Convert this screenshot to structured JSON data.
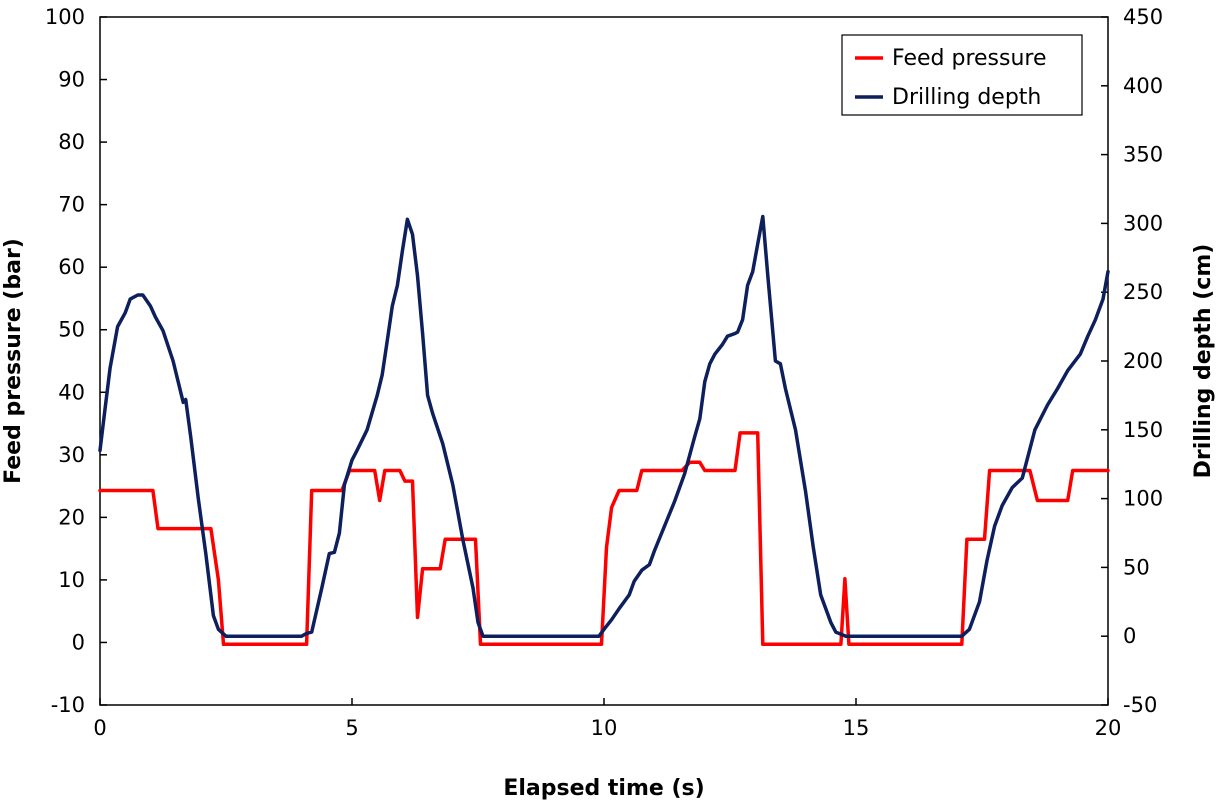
{
  "chart_data": {
    "type": "line",
    "xlabel": "Elapsed time (s)",
    "ylabel_left": "Feed pressure (bar)",
    "ylabel_right": "Drilling depth (cm)",
    "xlim": [
      0,
      20
    ],
    "ylim_left": [
      -10,
      100
    ],
    "ylim_right": [
      -50,
      450
    ],
    "x_ticks": [
      "0",
      "5",
      "10",
      "15",
      "20"
    ],
    "y_left_ticks": [
      "-10",
      "0",
      "10",
      "20",
      "30",
      "40",
      "50",
      "60",
      "70",
      "80",
      "90",
      "100"
    ],
    "y_right_ticks": [
      "-50",
      "0",
      "50",
      "100",
      "150",
      "200",
      "250",
      "300",
      "350",
      "400",
      "450"
    ],
    "grid": false,
    "legend_position": "top-right",
    "series": [
      {
        "name": "Feed pressure",
        "axis": "left",
        "color": "#ff0000",
        "points": [
          [
            0,
            24.3
          ],
          [
            1.05,
            24.3
          ],
          [
            1.15,
            18.2
          ],
          [
            2.2,
            18.2
          ],
          [
            2.35,
            10
          ],
          [
            2.45,
            -0.3
          ],
          [
            4.1,
            -0.3
          ],
          [
            4.2,
            24.3
          ],
          [
            4.8,
            24.3
          ],
          [
            4.95,
            27.5
          ],
          [
            5.45,
            27.5
          ],
          [
            5.55,
            22.7
          ],
          [
            5.65,
            27.5
          ],
          [
            5.95,
            27.5
          ],
          [
            6.05,
            25.8
          ],
          [
            6.2,
            25.8
          ],
          [
            6.3,
            4
          ],
          [
            6.4,
            11.8
          ],
          [
            6.75,
            11.8
          ],
          [
            6.85,
            16.5
          ],
          [
            7.45,
            16.5
          ],
          [
            7.55,
            -0.3
          ],
          [
            9.95,
            -0.3
          ],
          [
            10.05,
            15.2
          ],
          [
            10.15,
            21.6
          ],
          [
            10.3,
            24.3
          ],
          [
            10.65,
            24.3
          ],
          [
            10.75,
            27.5
          ],
          [
            11.55,
            27.5
          ],
          [
            11.7,
            28.8
          ],
          [
            11.9,
            28.8
          ],
          [
            12.0,
            27.5
          ],
          [
            12.6,
            27.5
          ],
          [
            12.7,
            33.5
          ],
          [
            13.05,
            33.5
          ],
          [
            13.15,
            -0.3
          ],
          [
            14.7,
            -0.3
          ],
          [
            14.78,
            10.2
          ],
          [
            14.86,
            -0.3
          ],
          [
            17.1,
            -0.3
          ],
          [
            17.2,
            16.5
          ],
          [
            17.55,
            16.5
          ],
          [
            17.65,
            27.5
          ],
          [
            18.45,
            27.5
          ],
          [
            18.6,
            22.7
          ],
          [
            19.2,
            22.7
          ],
          [
            19.3,
            27.5
          ],
          [
            20,
            27.5
          ]
        ]
      },
      {
        "name": "Drilling depth",
        "axis": "right",
        "color": "#0d1f5c",
        "points": [
          [
            0,
            135
          ],
          [
            0.1,
            165
          ],
          [
            0.2,
            195
          ],
          [
            0.35,
            225
          ],
          [
            0.5,
            235
          ],
          [
            0.6,
            245
          ],
          [
            0.75,
            248
          ],
          [
            0.85,
            248
          ],
          [
            1.0,
            240
          ],
          [
            1.1,
            232
          ],
          [
            1.25,
            222
          ],
          [
            1.45,
            200
          ],
          [
            1.65,
            170
          ],
          [
            1.7,
            172
          ],
          [
            1.8,
            145
          ],
          [
            1.95,
            100
          ],
          [
            2.1,
            60
          ],
          [
            2.25,
            15
          ],
          [
            2.35,
            5
          ],
          [
            2.5,
            0
          ],
          [
            3.0,
            0
          ],
          [
            3.2,
            0
          ],
          [
            3.6,
            0
          ],
          [
            3.8,
            0
          ],
          [
            4.0,
            0
          ],
          [
            4.1,
            2
          ],
          [
            4.2,
            3
          ],
          [
            4.4,
            35
          ],
          [
            4.55,
            60
          ],
          [
            4.65,
            61
          ],
          [
            4.75,
            75
          ],
          [
            4.85,
            110
          ],
          [
            5.0,
            128
          ],
          [
            5.1,
            135
          ],
          [
            5.3,
            150
          ],
          [
            5.5,
            175
          ],
          [
            5.6,
            190
          ],
          [
            5.7,
            215
          ],
          [
            5.8,
            240
          ],
          [
            5.9,
            255
          ],
          [
            6.0,
            280
          ],
          [
            6.1,
            303
          ],
          [
            6.2,
            292
          ],
          [
            6.3,
            262
          ],
          [
            6.4,
            220
          ],
          [
            6.5,
            175
          ],
          [
            6.6,
            162
          ],
          [
            6.8,
            140
          ],
          [
            7.0,
            110
          ],
          [
            7.2,
            70
          ],
          [
            7.4,
            35
          ],
          [
            7.5,
            10
          ],
          [
            7.6,
            0
          ],
          [
            8.0,
            0
          ],
          [
            9.0,
            0
          ],
          [
            9.9,
            0
          ],
          [
            10.0,
            5
          ],
          [
            10.15,
            12
          ],
          [
            10.3,
            20
          ],
          [
            10.5,
            30
          ],
          [
            10.6,
            40
          ],
          [
            10.75,
            48
          ],
          [
            10.9,
            52
          ],
          [
            11.0,
            62
          ],
          [
            11.2,
            80
          ],
          [
            11.4,
            98
          ],
          [
            11.6,
            118
          ],
          [
            11.8,
            145
          ],
          [
            11.9,
            158
          ],
          [
            12.0,
            185
          ],
          [
            12.1,
            198
          ],
          [
            12.2,
            205
          ],
          [
            12.35,
            212
          ],
          [
            12.45,
            218
          ],
          [
            12.6,
            220
          ],
          [
            12.65,
            221
          ],
          [
            12.75,
            230
          ],
          [
            12.85,
            255
          ],
          [
            12.95,
            265
          ],
          [
            13.05,
            285
          ],
          [
            13.15,
            305
          ],
          [
            13.25,
            262
          ],
          [
            13.4,
            200
          ],
          [
            13.5,
            198
          ],
          [
            13.6,
            180
          ],
          [
            13.8,
            150
          ],
          [
            14.0,
            105
          ],
          [
            14.15,
            65
          ],
          [
            14.3,
            30
          ],
          [
            14.5,
            10
          ],
          [
            14.6,
            3
          ],
          [
            14.8,
            0
          ],
          [
            15.0,
            0
          ],
          [
            16.0,
            0
          ],
          [
            17.0,
            0
          ],
          [
            17.1,
            0
          ],
          [
            17.25,
            5
          ],
          [
            17.45,
            25
          ],
          [
            17.6,
            55
          ],
          [
            17.75,
            80
          ],
          [
            17.9,
            95
          ],
          [
            18.1,
            108
          ],
          [
            18.3,
            115
          ],
          [
            18.55,
            150
          ],
          [
            18.8,
            168
          ],
          [
            19.0,
            180
          ],
          [
            19.2,
            193
          ],
          [
            19.45,
            205
          ],
          [
            19.6,
            218
          ],
          [
            19.75,
            230
          ],
          [
            19.9,
            245
          ],
          [
            20,
            265
          ]
        ]
      }
    ]
  }
}
